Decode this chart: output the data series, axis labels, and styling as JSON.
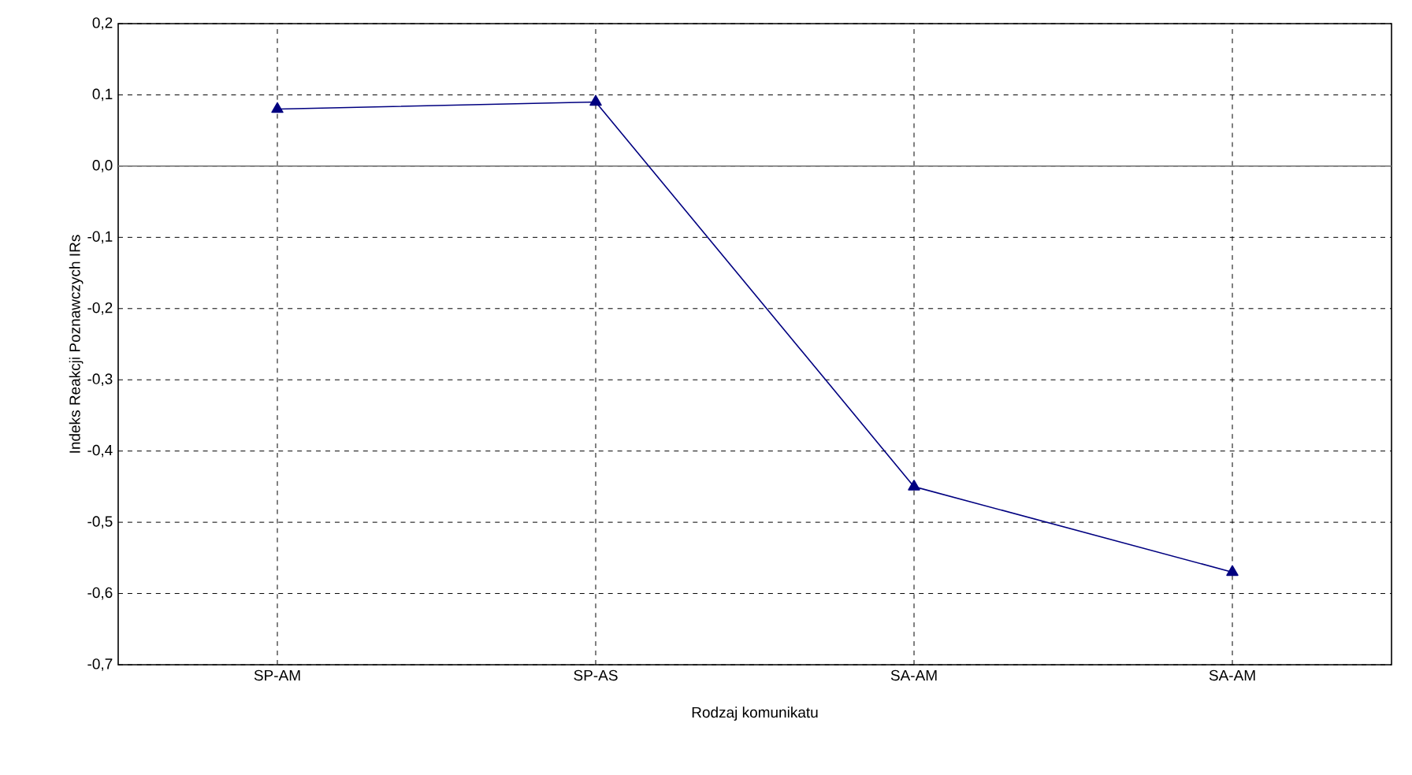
{
  "chart_data": {
    "type": "line",
    "xlabel": "Rodzaj komunikatu",
    "ylabel": "Indeks Reakcji Poznawczych IRs",
    "categories": [
      "SP-AM",
      "SP-AS",
      "SA-AM",
      "SA-AM"
    ],
    "series": [
      {
        "color": "#000080",
        "values": [
          0.08,
          0.09,
          -0.45,
          -0.57
        ]
      }
    ],
    "ylim": [
      -0.7,
      0.2
    ],
    "yticks": [
      {
        "value": -0.7,
        "label": "-0,7"
      },
      {
        "value": -0.6,
        "label": "-0,6"
      },
      {
        "value": -0.5,
        "label": "-0,5"
      },
      {
        "value": -0.4,
        "label": "-0,4"
      },
      {
        "value": -0.3,
        "label": "-0,3"
      },
      {
        "value": -0.2,
        "label": "-0,2"
      },
      {
        "value": -0.1,
        "label": "-0,1"
      },
      {
        "value": 0,
        "label": "0,0"
      },
      {
        "value": 0.1,
        "label": "0,1"
      },
      {
        "value": 0.2,
        "label": "0,2"
      }
    ],
    "ref_lines": [
      {
        "axis": "y",
        "value": 0,
        "color": "#808080"
      }
    ],
    "grid": true,
    "marker": "triangle",
    "line_style": "solid"
  }
}
